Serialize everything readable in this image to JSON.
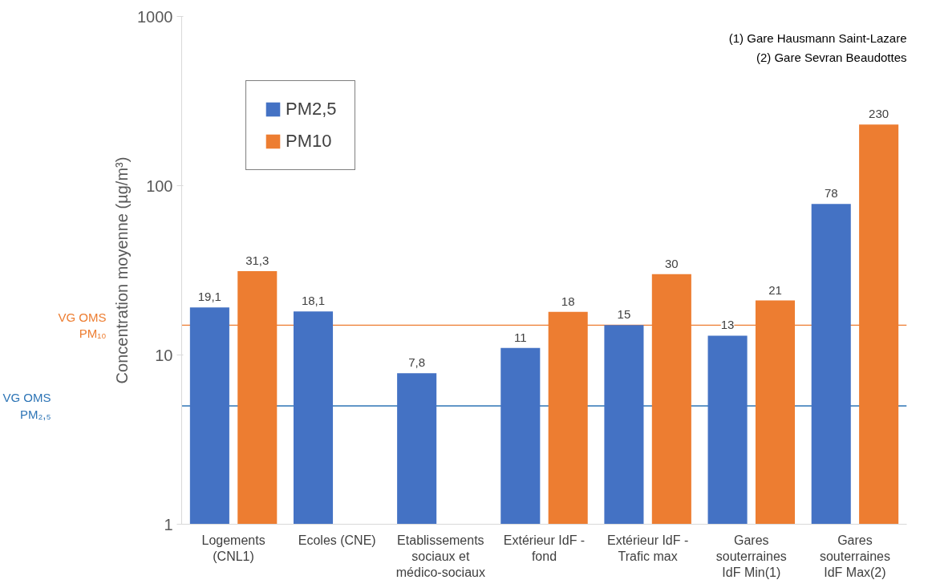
{
  "chart_data": {
    "type": "bar",
    "ylabel": "Concentration moyenne (µg/m³)",
    "log": true,
    "ylim": [
      1,
      1000
    ],
    "yticks": [
      1,
      10,
      100,
      1000
    ],
    "grid": false,
    "legend": "top left",
    "categories": [
      "Logements\n(CNL1)",
      "Ecoles (CNE)",
      "Etablissements\nsociaux et\nmédico-sociaux",
      "Extérieur IdF -\nfond",
      "Extérieur IdF -\nTrafic max",
      "Gares\nsouterraines\nIdF Min(1)",
      "Gares\nsouterraines\nIdF Max(2)"
    ],
    "series": [
      {
        "name": "PM2,5",
        "color": "#4472c4",
        "values": [
          19.1,
          18.1,
          7.8,
          11,
          15,
          13,
          78
        ],
        "value_labels": [
          "19,1",
          "18,1",
          "7,8",
          "11",
          "15",
          "13",
          "78"
        ]
      },
      {
        "name": "PM10",
        "color": "#ed7d31",
        "values": [
          31.3,
          null,
          null,
          18,
          30,
          21,
          230
        ],
        "value_labels": [
          "31,3",
          null,
          null,
          "18",
          "30",
          "21",
          "230"
        ]
      }
    ],
    "ref_lines": [
      {
        "axis": "y",
        "value": 15,
        "label": "VG OMS\nPM₁₀",
        "color": "#ed7d31"
      },
      {
        "axis": "y",
        "value": 5,
        "label": "VG OMS\nPM₂,₅",
        "color": "#2e75b6"
      }
    ],
    "annotations": [
      "(1) Gare Hausmann Saint-Lazare",
      "(2) Gare Sevran Beaudottes"
    ]
  }
}
